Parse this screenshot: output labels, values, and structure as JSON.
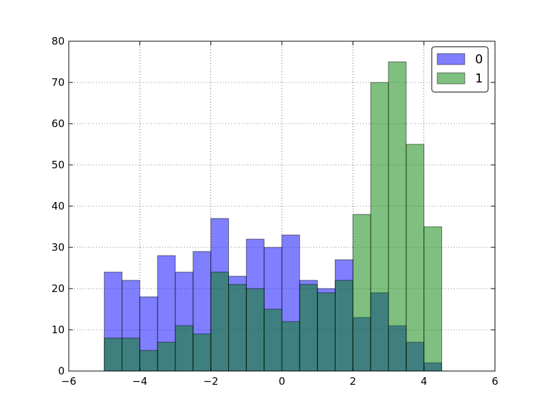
{
  "chart_data": {
    "type": "bar",
    "title": "",
    "xlabel": "",
    "ylabel": "",
    "xlim": [
      -6,
      6
    ],
    "ylim": [
      0,
      80
    ],
    "xticks": [
      -6,
      -4,
      -2,
      0,
      2,
      4,
      6
    ],
    "yticks": [
      0,
      10,
      20,
      30,
      40,
      50,
      60,
      70,
      80
    ],
    "xtick_labels": [
      "−6",
      "−4",
      "−2",
      "0",
      "2",
      "4",
      "6"
    ],
    "ytick_labels": [
      "0",
      "10",
      "20",
      "30",
      "40",
      "50",
      "60",
      "70",
      "80"
    ],
    "grid": true,
    "legend_position": "top-right",
    "bin_edges": [
      -5.0,
      -4.5,
      -4.0,
      -3.5,
      -3.0,
      -2.5,
      -2.0,
      -1.5,
      -1.0,
      -0.5,
      0.0,
      0.5,
      1.0,
      1.5,
      2.0,
      2.5,
      3.0,
      3.5,
      4.0,
      4.5
    ],
    "series": [
      {
        "name": "0",
        "color": "#0000ff",
        "opacity": 0.5,
        "values": [
          24,
          22,
          18,
          28,
          24,
          29,
          37,
          23,
          32,
          30,
          33,
          22,
          20,
          27,
          13,
          19,
          11,
          7,
          2
        ]
      },
      {
        "name": "1",
        "color": "#008000",
        "opacity": 0.5,
        "values": [
          8,
          8,
          5,
          7,
          11,
          9,
          24,
          21,
          20,
          15,
          12,
          21,
          19,
          22,
          38,
          70,
          75,
          55,
          35
        ]
      }
    ]
  }
}
